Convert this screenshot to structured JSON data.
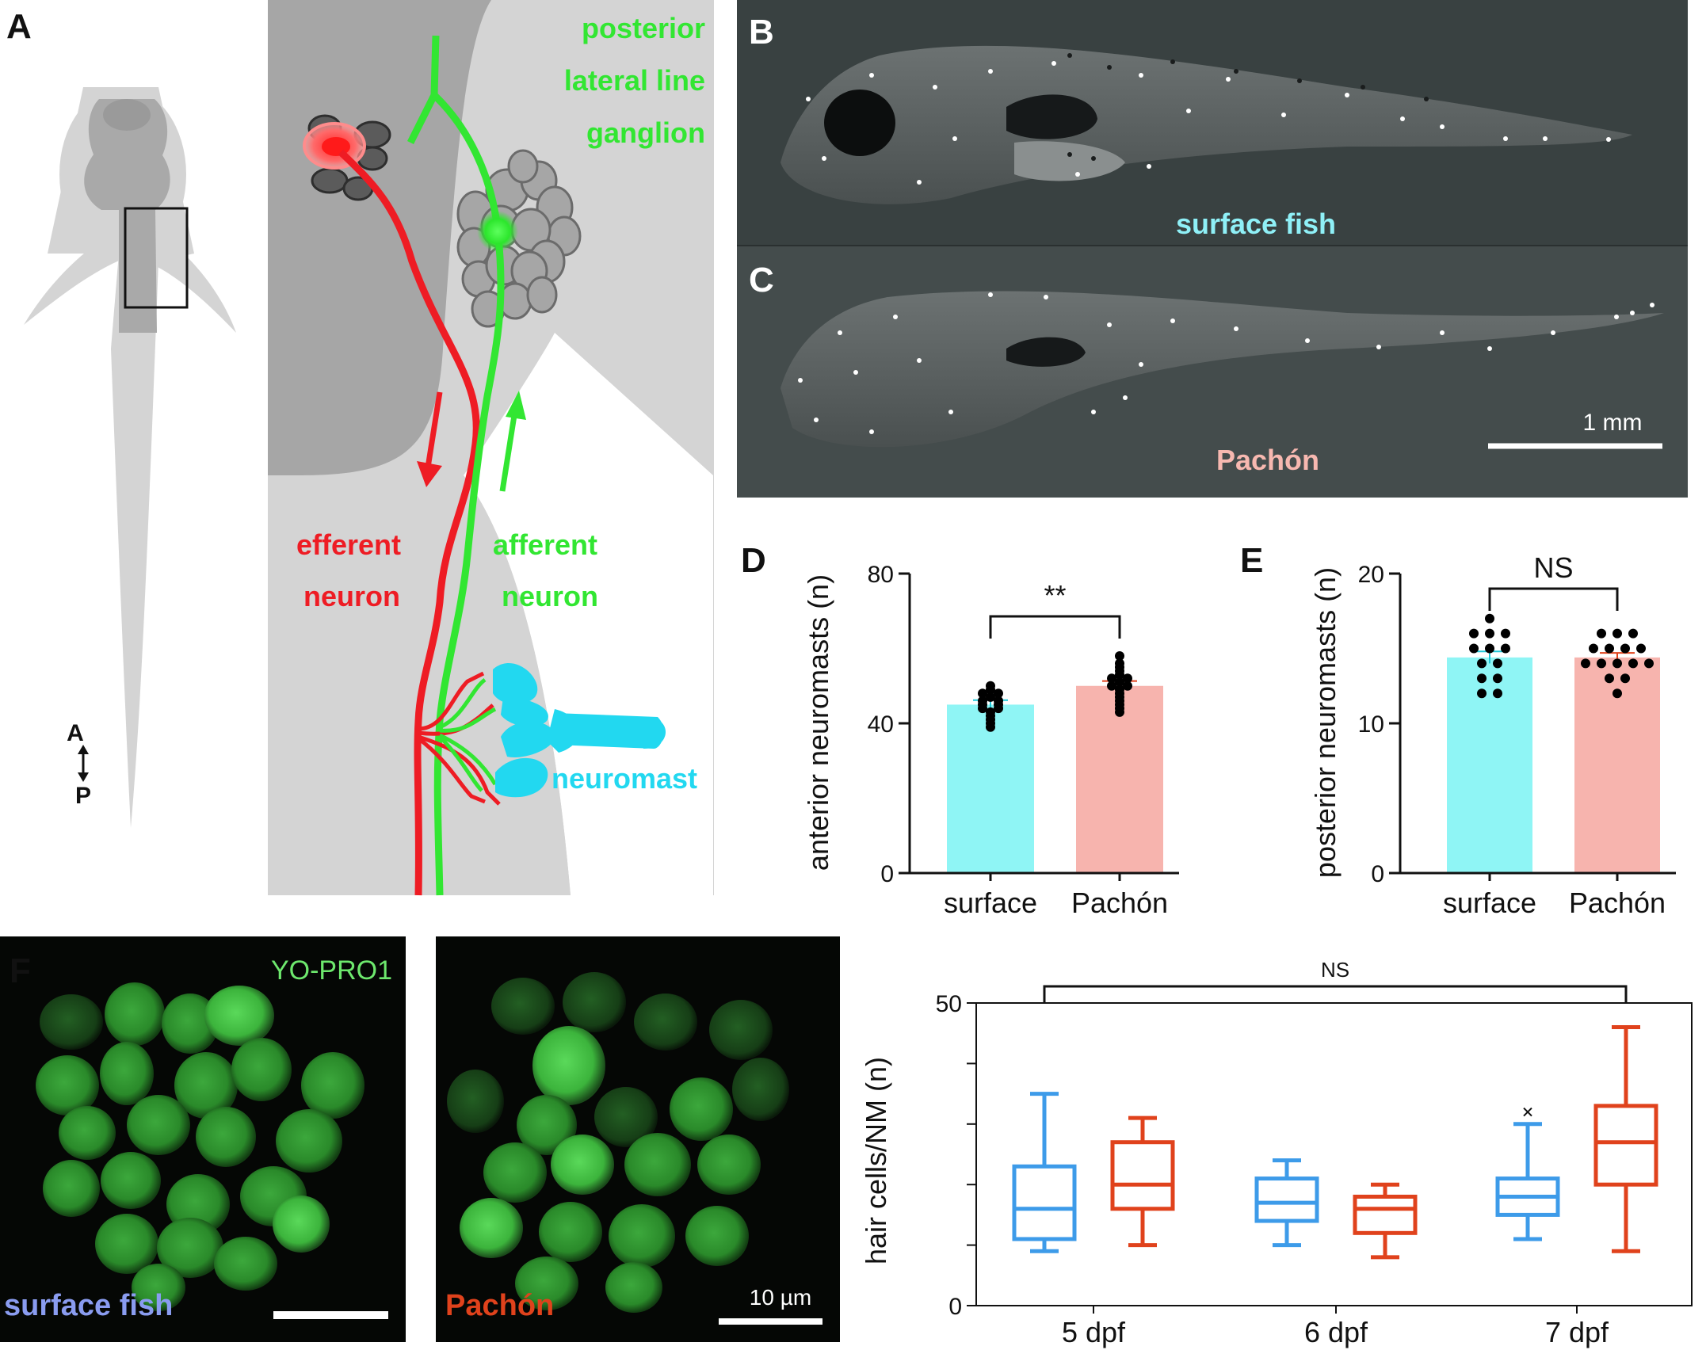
{
  "panels": {
    "A": "A",
    "B": "B",
    "C": "C",
    "D": "D",
    "E": "E",
    "F": "F"
  },
  "panelA": {
    "axis_A": "A",
    "axis_P": "P",
    "ganglion_lines": [
      "posterior",
      "lateral line",
      "ganglion"
    ],
    "efferent_lines": [
      "efferent",
      "neuron"
    ],
    "afferent_lines": [
      "afferent",
      "neuron"
    ],
    "neuromast": "neuromast",
    "colors": {
      "efferent": "#ee1c24",
      "afferent": "#32e632",
      "neuromast": "#22d8f0"
    }
  },
  "panelB": {
    "label": "surface fish",
    "color": "#8ff0f7"
  },
  "panelC": {
    "label": "Pachón",
    "scalebar": "1 mm",
    "color": "#f7b8b0"
  },
  "panelF": {
    "stain": "YO-PRO1",
    "left_label": "surface fish",
    "right_label": "Pachón",
    "scalebar": "10 µm",
    "colors": {
      "surface": "#8a9cf0",
      "pachon": "#e0421c",
      "stain": "#6de86d"
    }
  },
  "chart_data": [
    {
      "type": "bar",
      "panel": "D",
      "ylabel": "anterior neuromasts (n)",
      "categories": [
        "surface",
        "Pachón"
      ],
      "values": [
        45,
        50
      ],
      "errors": [
        1.2,
        1.3
      ],
      "ylim": [
        0,
        80
      ],
      "yticks": [
        0,
        40,
        80
      ],
      "significance": "**",
      "colors": [
        "#8ff5f5",
        "#f7b4ae"
      ],
      "points": [
        [
          50,
          49,
          48,
          48,
          47,
          46,
          46,
          45,
          45,
          44,
          44,
          43,
          42,
          41,
          40,
          39
        ],
        [
          58,
          56,
          55,
          54,
          53,
          52,
          52,
          51,
          50,
          50,
          49,
          48,
          47,
          46,
          45,
          44,
          43
        ]
      ]
    },
    {
      "type": "bar",
      "panel": "E",
      "ylabel": "posterior neuromasts (n)",
      "categories": [
        "surface",
        "Pachón"
      ],
      "values": [
        14.4,
        14.4
      ],
      "errors": [
        0.4,
        0.3
      ],
      "ylim": [
        0,
        20
      ],
      "yticks": [
        0,
        10,
        20
      ],
      "significance": "NS",
      "colors": [
        "#8ff5f5",
        "#f7b4ae"
      ],
      "points": [
        [
          17,
          16,
          16,
          16,
          15,
          15,
          15,
          14,
          14,
          13,
          13,
          12,
          12
        ],
        [
          16,
          16,
          16,
          15,
          15,
          15,
          15,
          14,
          14,
          14,
          14,
          14,
          13,
          13,
          12
        ]
      ]
    },
    {
      "type": "box",
      "panel": "F",
      "ylabel": "hair cells/NM (n)",
      "categories": [
        "5 dpf",
        "6 dpf",
        "7 dpf"
      ],
      "ylim": [
        0,
        50
      ],
      "yticks": [
        0,
        50
      ],
      "significance": "NS",
      "series": [
        {
          "color": "#3d9be9",
          "boxes": [
            {
              "min": 9,
              "q1": 11,
              "median": 16,
              "q3": 23,
              "max": 35
            },
            {
              "min": 10,
              "q1": 14,
              "median": 17,
              "q3": 21,
              "max": 24
            },
            {
              "min": 11,
              "q1": 15,
              "median": 18,
              "q3": 21,
              "max": 30,
              "outlier": 32
            }
          ]
        },
        {
          "color": "#e0421c",
          "boxes": [
            {
              "min": 10,
              "q1": 16,
              "median": 20,
              "q3": 27,
              "max": 31
            },
            {
              "min": 8,
              "q1": 12,
              "median": 16,
              "q3": 18,
              "max": 20
            },
            {
              "min": 9,
              "q1": 20,
              "median": 27,
              "q3": 33,
              "max": 46
            }
          ]
        }
      ]
    }
  ]
}
